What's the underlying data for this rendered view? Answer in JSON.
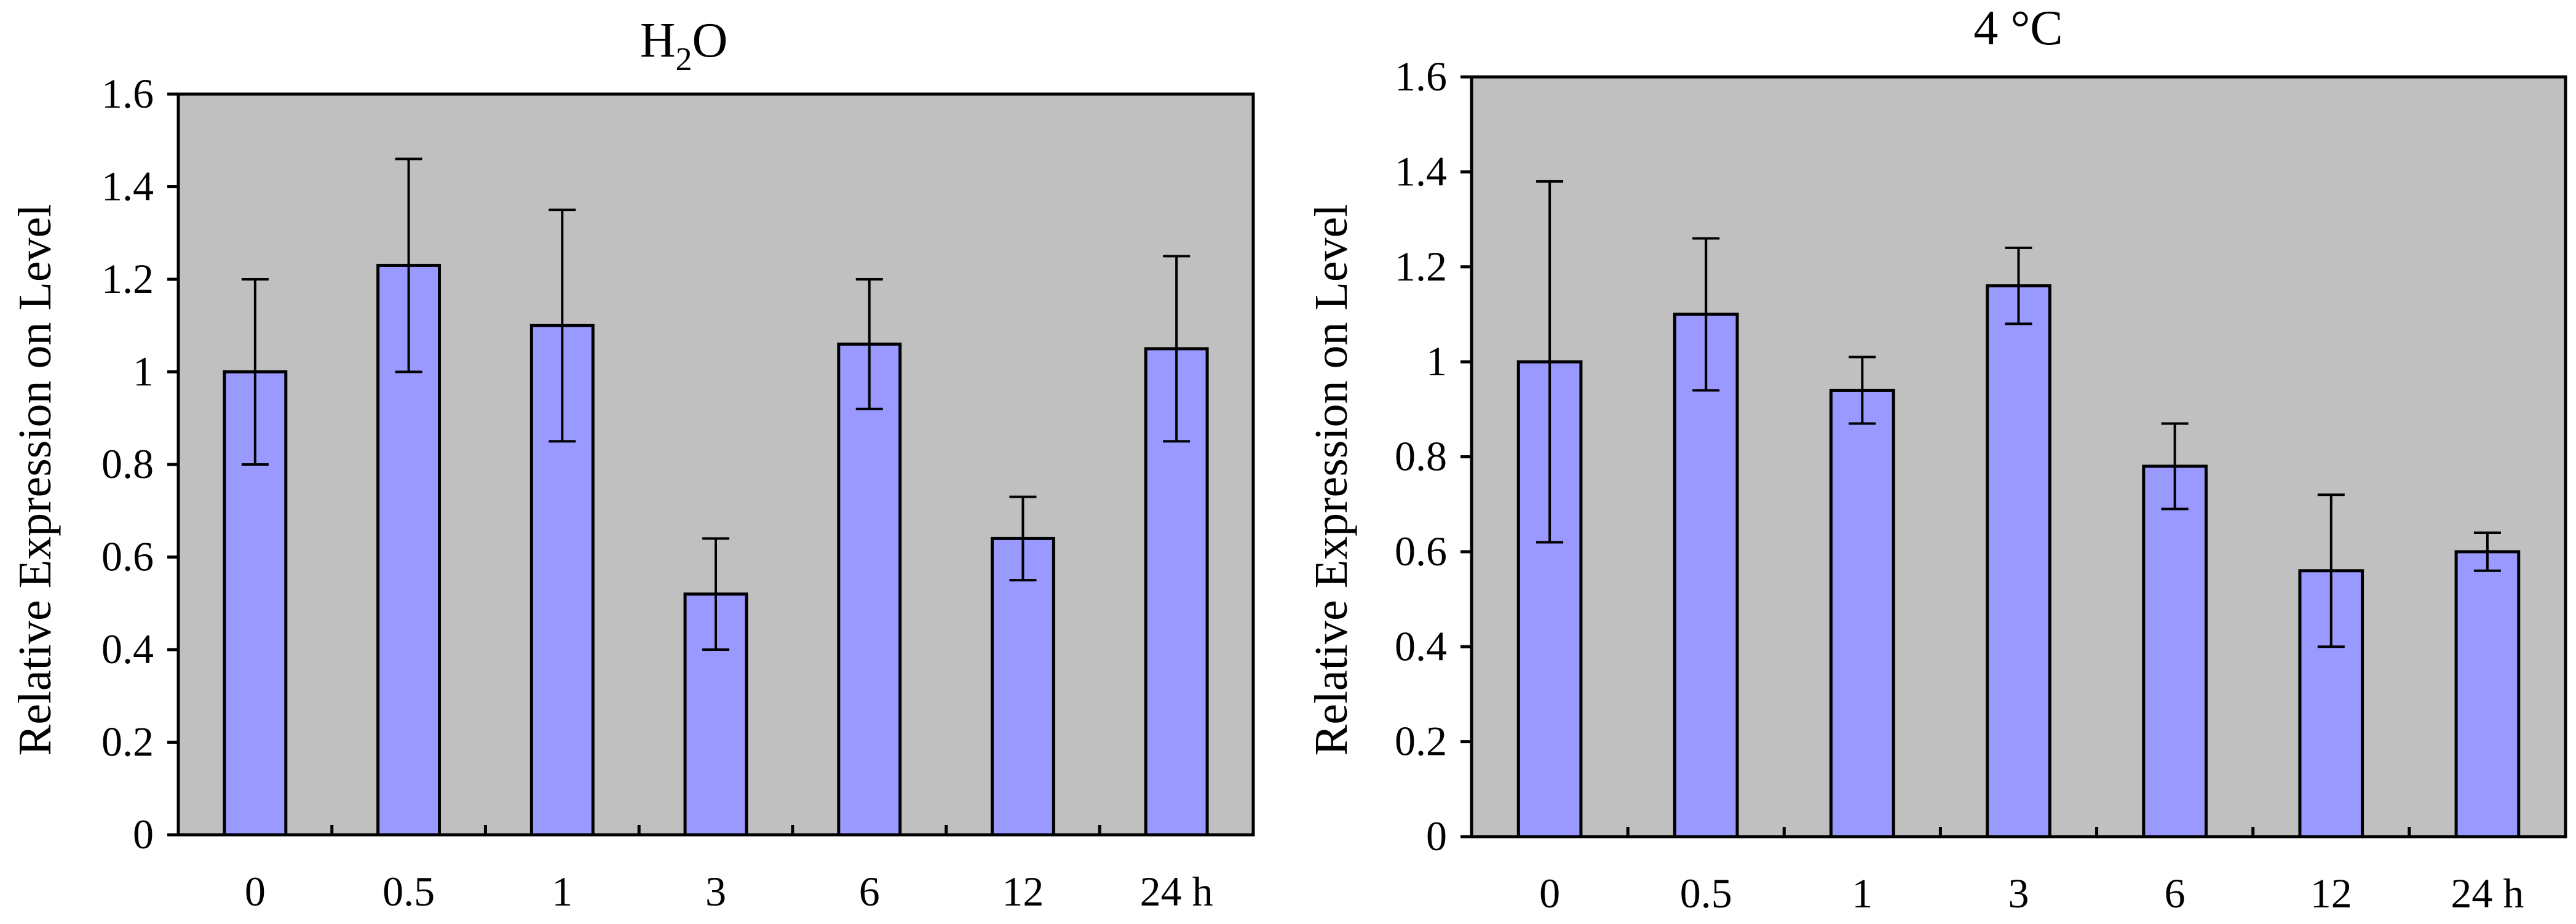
{
  "colors": {
    "plot_background": "#c0c0c0",
    "bar_fill": "#9999ff",
    "stroke": "#000000",
    "page_background": "#ffffff"
  },
  "chart_data": [
    {
      "type": "bar",
      "title": "H2O",
      "title_main": "H",
      "title_sub": "2",
      "title_end": "O",
      "xlabel": "",
      "ylabel": "Relative Expression on Level",
      "categories": [
        "0",
        "0.5",
        "1",
        "3",
        "6",
        "12",
        "24 h"
      ],
      "values": [
        1.0,
        1.23,
        1.1,
        0.52,
        1.06,
        0.64,
        1.05
      ],
      "errors": [
        0.2,
        0.23,
        0.25,
        0.12,
        0.14,
        0.09,
        0.2
      ],
      "ylim": [
        0,
        1.6
      ],
      "yticks": [
        "0",
        "0.2",
        "0.4",
        "0.6",
        "0.8",
        "1",
        "1.2",
        "1.4",
        "1.6"
      ],
      "grid": false
    },
    {
      "type": "bar",
      "title": "4 °C",
      "xlabel": "",
      "ylabel": "Relative Expression on Level",
      "categories": [
        "0",
        "0.5",
        "1",
        "3",
        "6",
        "12",
        "24 h"
      ],
      "values": [
        1.0,
        1.1,
        0.94,
        1.16,
        0.78,
        0.56,
        0.6
      ],
      "errors": [
        0.38,
        0.16,
        0.07,
        0.08,
        0.09,
        0.16,
        0.04
      ],
      "ylim": [
        0,
        1.6
      ],
      "yticks": [
        "0",
        "0.2",
        "0.4",
        "0.6",
        "0.8",
        "1",
        "1.2",
        "1.4",
        "1.6"
      ],
      "grid": false
    }
  ]
}
